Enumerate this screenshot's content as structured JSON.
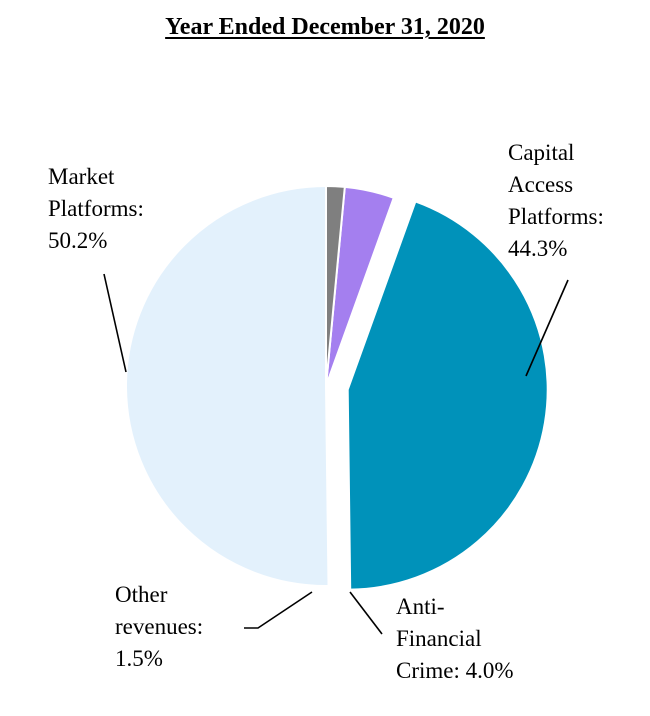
{
  "chart_data": {
    "type": "pie",
    "title": "Year Ended December 31, 2020",
    "slices": [
      {
        "name": "Market Platforms",
        "label_lines": [
          "Market",
          "Platforms:",
          "50.2%"
        ],
        "value": 50.2,
        "color": "#E3F1FC"
      },
      {
        "name": "Capital Access Platforms",
        "label_lines": [
          "Capital",
          "Access",
          "Platforms:",
          "44.3%"
        ],
        "value": 44.3,
        "color": "#0092BA"
      },
      {
        "name": "Anti-Financial Crime",
        "label_lines": [
          "Anti-",
          "Financial",
          "Crime: 4.0%"
        ],
        "value": 4.0,
        "color": "#A47FEF"
      },
      {
        "name": "Other revenues",
        "label_lines": [
          "Other",
          "revenues:",
          "1.5%"
        ],
        "value": 1.5,
        "color": "#7F7F7F"
      }
    ],
    "exploded": [
      "Capital Access Platforms"
    ],
    "legend": "none"
  }
}
